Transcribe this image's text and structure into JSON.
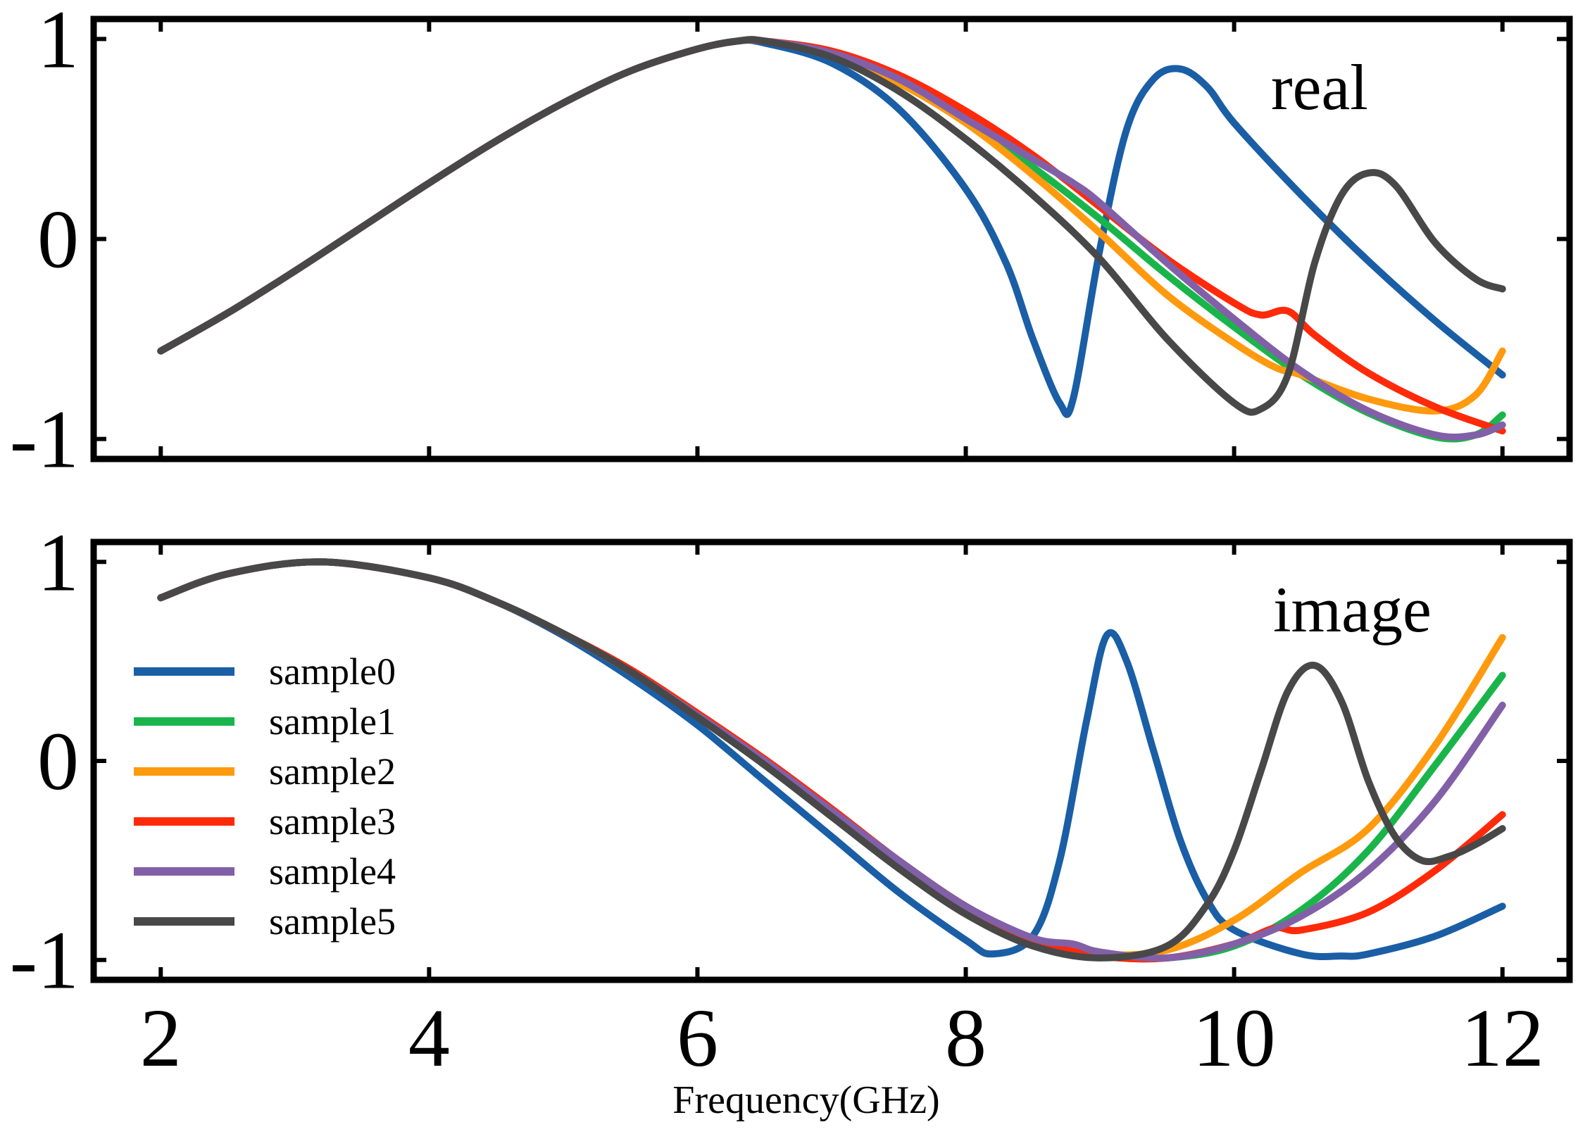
{
  "chart_data": [
    {
      "type": "line",
      "panel_label": "real",
      "xlim": [
        1.5,
        12.5
      ],
      "ylim": [
        -1.1,
        1.1
      ],
      "xticks": [
        2,
        4,
        6,
        8,
        10,
        12
      ],
      "yticks": [
        1,
        0,
        -1
      ],
      "ytick_labels": [
        "1",
        "0",
        "-1"
      ],
      "grid": false,
      "series": [
        {
          "name": "sample0",
          "color": "#1a5ea6",
          "x": [
            2,
            2.5,
            3,
            3.5,
            4,
            4.5,
            5,
            5.5,
            6,
            6.3,
            6.5,
            7,
            7.5,
            8,
            8.3,
            8.5,
            8.7,
            8.8,
            9,
            9.2,
            9.4,
            9.6,
            9.8,
            10,
            10.5,
            11,
            11.5,
            12
          ],
          "y": [
            -0.56,
            -0.37,
            -0.16,
            0.06,
            0.28,
            0.49,
            0.68,
            0.84,
            0.95,
            0.99,
            0.98,
            0.88,
            0.65,
            0.25,
            -0.12,
            -0.5,
            -0.82,
            -0.8,
            -0.05,
            0.55,
            0.8,
            0.85,
            0.76,
            0.58,
            0.22,
            -0.11,
            -0.41,
            -0.68
          ]
        },
        {
          "name": "sample1",
          "color": "#1ab54a",
          "x": [
            2,
            2.5,
            3,
            3.5,
            4,
            4.5,
            5,
            5.5,
            6,
            6.3,
            6.5,
            7,
            7.5,
            8,
            8.5,
            9,
            9.5,
            10,
            10.5,
            11,
            11.5,
            11.8,
            12
          ],
          "y": [
            -0.56,
            -0.37,
            -0.16,
            0.06,
            0.28,
            0.49,
            0.68,
            0.84,
            0.95,
            0.99,
            0.99,
            0.93,
            0.79,
            0.6,
            0.36,
            0.1,
            -0.18,
            -0.44,
            -0.68,
            -0.87,
            -0.99,
            -0.98,
            -0.88
          ]
        },
        {
          "name": "sample2",
          "color": "#ff9a0e",
          "x": [
            2,
            2.5,
            3,
            3.5,
            4,
            4.5,
            5,
            5.5,
            6,
            6.3,
            6.5,
            7,
            7.5,
            8,
            8.5,
            9,
            9.5,
            10,
            10.3,
            10.5,
            11,
            11.5,
            11.8,
            12
          ],
          "y": [
            -0.56,
            -0.37,
            -0.16,
            0.06,
            0.28,
            0.49,
            0.68,
            0.84,
            0.95,
            0.99,
            0.99,
            0.92,
            0.78,
            0.58,
            0.32,
            0.03,
            -0.28,
            -0.52,
            -0.64,
            -0.68,
            -0.8,
            -0.86,
            -0.78,
            -0.56
          ]
        },
        {
          "name": "sample3",
          "color": "#ff2a0a",
          "x": [
            2,
            2.5,
            3,
            3.5,
            4,
            4.5,
            5,
            5.5,
            6,
            6.3,
            6.5,
            7,
            7.5,
            8,
            8.5,
            9,
            9.5,
            10,
            10.2,
            10.4,
            10.6,
            11,
            11.5,
            12
          ],
          "y": [
            -0.56,
            -0.37,
            -0.16,
            0.06,
            0.28,
            0.49,
            0.68,
            0.84,
            0.95,
            0.99,
            0.99,
            0.94,
            0.82,
            0.64,
            0.42,
            0.16,
            -0.1,
            -0.32,
            -0.38,
            -0.36,
            -0.48,
            -0.67,
            -0.84,
            -0.96
          ]
        },
        {
          "name": "sample4",
          "color": "#8260a8",
          "x": [
            2,
            2.5,
            3,
            3.5,
            4,
            4.5,
            5,
            5.5,
            6,
            6.3,
            6.5,
            7,
            7.5,
            8,
            8.5,
            8.8,
            9,
            9.5,
            10,
            10.5,
            11,
            11.5,
            11.8,
            12
          ],
          "y": [
            -0.56,
            -0.37,
            -0.16,
            0.06,
            0.28,
            0.49,
            0.68,
            0.84,
            0.95,
            0.99,
            0.99,
            0.93,
            0.8,
            0.6,
            0.4,
            0.28,
            0.18,
            -0.12,
            -0.4,
            -0.66,
            -0.86,
            -0.98,
            -0.98,
            -0.93
          ]
        },
        {
          "name": "sample5",
          "color": "#484848",
          "x": [
            2,
            2.5,
            3,
            3.5,
            4,
            4.5,
            5,
            5.5,
            6,
            6.3,
            6.5,
            7,
            7.5,
            8,
            8.5,
            9,
            9.5,
            10,
            10.2,
            10.4,
            10.6,
            10.8,
            11,
            11.2,
            11.5,
            11.8,
            12
          ],
          "y": [
            -0.56,
            -0.37,
            -0.16,
            0.06,
            0.28,
            0.49,
            0.68,
            0.84,
            0.95,
            0.99,
            0.99,
            0.91,
            0.74,
            0.5,
            0.22,
            -0.1,
            -0.5,
            -0.82,
            -0.85,
            -0.68,
            -0.12,
            0.22,
            0.33,
            0.27,
            -0.02,
            -0.2,
            -0.25
          ]
        }
      ]
    },
    {
      "type": "line",
      "panel_label": "image",
      "xlim": [
        1.5,
        12.5
      ],
      "ylim": [
        -1.1,
        1.1
      ],
      "xticks": [
        2,
        4,
        6,
        8,
        10,
        12
      ],
      "xtick_labels": [
        "2",
        "4",
        "6",
        "8",
        "10",
        "12"
      ],
      "yticks": [
        1,
        0,
        -1
      ],
      "ytick_labels": [
        "1",
        "0",
        "-1"
      ],
      "xlabel": "Frequency(GHz)",
      "grid": false,
      "legend_position": "left",
      "series": [
        {
          "name": "sample0",
          "color": "#1a5ea6",
          "x": [
            2,
            2.5,
            3.2,
            4,
            4.5,
            5,
            5.5,
            6,
            6.5,
            7,
            7.5,
            8,
            8.2,
            8.5,
            8.7,
            8.9,
            9.05,
            9.2,
            9.4,
            9.6,
            9.8,
            10,
            10.5,
            10.8,
            11,
            11.5,
            12
          ],
          "y": [
            0.82,
            0.94,
            1.0,
            0.92,
            0.8,
            0.63,
            0.42,
            0.18,
            -0.1,
            -0.38,
            -0.66,
            -0.9,
            -0.97,
            -0.88,
            -0.5,
            0.2,
            0.63,
            0.5,
            0.05,
            -0.4,
            -0.7,
            -0.85,
            -0.97,
            -0.98,
            -0.97,
            -0.88,
            -0.73
          ]
        },
        {
          "name": "sample1",
          "color": "#1ab54a",
          "x": [
            2,
            2.5,
            3.2,
            4,
            4.5,
            5,
            5.5,
            6,
            6.5,
            7,
            7.5,
            8,
            8.5,
            9,
            9.5,
            10,
            10.5,
            11,
            11.5,
            12
          ],
          "y": [
            0.82,
            0.94,
            1.0,
            0.92,
            0.8,
            0.64,
            0.45,
            0.23,
            0.0,
            -0.25,
            -0.5,
            -0.73,
            -0.9,
            -0.98,
            -0.99,
            -0.93,
            -0.75,
            -0.45,
            -0.02,
            0.43
          ]
        },
        {
          "name": "sample2",
          "color": "#ff9a0e",
          "x": [
            2,
            2.5,
            3.2,
            4,
            4.5,
            5,
            5.5,
            6,
            6.5,
            7,
            7.5,
            8,
            8.5,
            9,
            9.5,
            10,
            10.5,
            11,
            11.5,
            12
          ],
          "y": [
            0.82,
            0.94,
            1.0,
            0.92,
            0.8,
            0.64,
            0.45,
            0.23,
            0.0,
            -0.25,
            -0.5,
            -0.73,
            -0.9,
            -0.97,
            -0.95,
            -0.8,
            -0.56,
            -0.34,
            0.08,
            0.62
          ]
        },
        {
          "name": "sample3",
          "color": "#ff2a0a",
          "x": [
            2,
            2.5,
            3.2,
            4,
            4.5,
            5,
            5.5,
            6,
            6.5,
            7,
            7.5,
            8,
            8.5,
            9,
            9.5,
            10,
            10.3,
            10.5,
            11,
            11.5,
            12
          ],
          "y": [
            0.82,
            0.94,
            1.0,
            0.92,
            0.8,
            0.64,
            0.46,
            0.24,
            0.01,
            -0.24,
            -0.5,
            -0.73,
            -0.9,
            -0.98,
            -0.99,
            -0.92,
            -0.84,
            -0.85,
            -0.76,
            -0.55,
            -0.27
          ]
        },
        {
          "name": "sample4",
          "color": "#8260a8",
          "x": [
            2,
            2.5,
            3.2,
            4,
            4.5,
            5,
            5.5,
            6,
            6.5,
            7,
            7.5,
            8,
            8.5,
            8.8,
            9,
            9.5,
            10,
            10.5,
            11,
            11.5,
            12
          ],
          "y": [
            0.82,
            0.94,
            1.0,
            0.92,
            0.8,
            0.64,
            0.45,
            0.23,
            0.0,
            -0.25,
            -0.5,
            -0.73,
            -0.89,
            -0.92,
            -0.96,
            -0.99,
            -0.92,
            -0.78,
            -0.55,
            -0.2,
            0.28
          ]
        },
        {
          "name": "sample5",
          "color": "#484848",
          "x": [
            2,
            2.5,
            3.2,
            4,
            4.5,
            5,
            5.5,
            6,
            6.5,
            7,
            7.5,
            8,
            8.5,
            9,
            9.5,
            9.8,
            10,
            10.2,
            10.4,
            10.6,
            10.8,
            11,
            11.2,
            11.4,
            11.6,
            11.8,
            12
          ],
          "y": [
            0.82,
            0.94,
            1.0,
            0.92,
            0.8,
            0.64,
            0.45,
            0.22,
            -0.02,
            -0.28,
            -0.54,
            -0.77,
            -0.93,
            -0.99,
            -0.93,
            -0.72,
            -0.45,
            -0.05,
            0.35,
            0.48,
            0.3,
            -0.1,
            -0.38,
            -0.5,
            -0.48,
            -0.42,
            -0.34
          ]
        }
      ]
    }
  ]
}
